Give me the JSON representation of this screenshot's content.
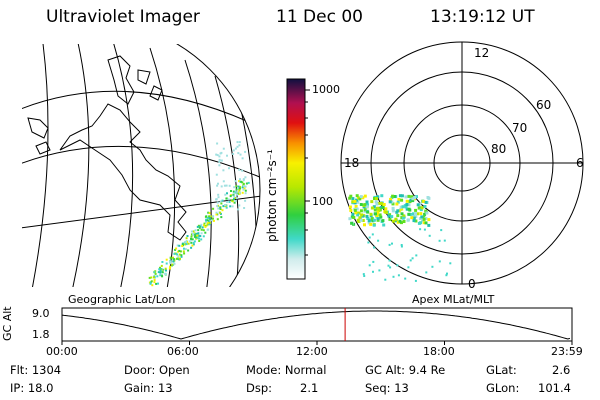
{
  "header": {
    "instrument": "Ultraviolet Imager",
    "date": "11 Dec 00",
    "time": "13:19:12 UT"
  },
  "geo_panel": {
    "caption": "Geographic Lat/Lon"
  },
  "colorbar": {
    "unit_label": "photon cm⁻²s⁻¹",
    "ticks": [
      "1000",
      "100"
    ]
  },
  "polar_panel": {
    "caption": "Apex MLat/MLT",
    "mlt_labels": {
      "top": "12",
      "left": "18",
      "right": "6",
      "bottom": "0"
    },
    "mlat_labels": [
      "60",
      "70",
      "80"
    ]
  },
  "altitude_plot": {
    "ylabel": "GC Alt",
    "yticks": [
      "9.0",
      "1.8"
    ],
    "xticks": [
      "00:00",
      "06:00",
      "12:00",
      "18:00",
      "23:59"
    ],
    "marker_time_hours": 13.32
  },
  "info": {
    "flt": "Flt: 1304",
    "door": "Door: Open",
    "mode": "Mode: Normal",
    "gc_alt": "GC Alt: 9.4 Re",
    "glat_label": "GLat:",
    "glat_value": "2.6",
    "ip": "IP: 18.0",
    "gain": "Gain: 13",
    "dsp_label": "Dsp:",
    "dsp_value": "2.1",
    "seq": "Seq: 13",
    "glon_label": "GLon:",
    "glon_value": "101.4"
  }
}
